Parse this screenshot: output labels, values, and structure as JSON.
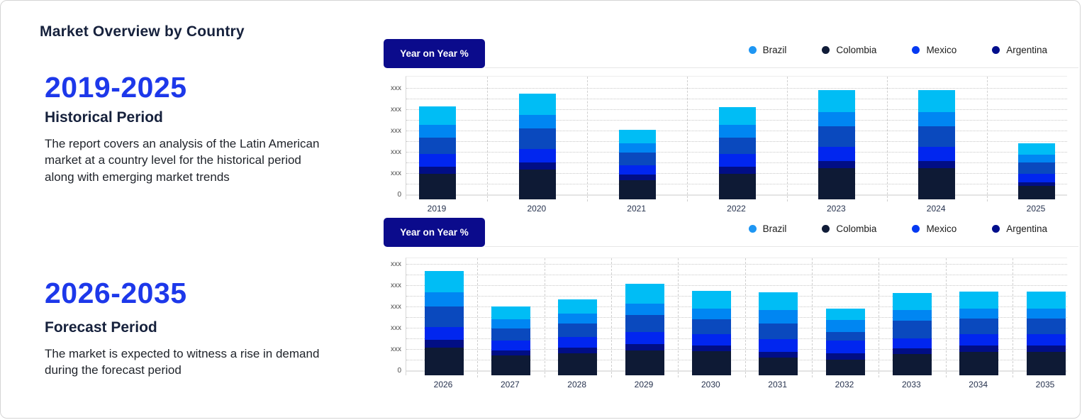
{
  "page_title": "Market Overview by Country",
  "left_panel": {
    "sections": [
      {
        "year_range": "2019-2025",
        "period_name": "Historical Period",
        "description": "The report covers an analysis of the Latin American market at a country level for the historical period along with emerging market trends"
      },
      {
        "year_range": "2026-2035",
        "period_name": "Forecast Period",
        "description": "The market is expected to witness a rise in demand during the forecast period"
      }
    ]
  },
  "colors": {
    "accent_blue": "#1d38ea",
    "heading_navy": "#16213c",
    "button_navy": "#0b0b8c",
    "stack_palette_bottom_to_top": [
      "#0e1a35",
      "#010e85",
      "#0126ef",
      "#0a49be",
      "#0086f2",
      "#00bdf5"
    ]
  },
  "charts": [
    {
      "button_label": "Year on Year %",
      "legend": [
        {
          "label": "Brazil",
          "color": "#1e96f3"
        },
        {
          "label": "Colombia",
          "color": "#101c38"
        },
        {
          "label": "Mexico",
          "color": "#0439f2"
        },
        {
          "label": "Argentina",
          "color": "#000e8c"
        }
      ],
      "chart_data": {
        "type": "bar",
        "stacked": true,
        "title": "Year on Year %",
        "categories": [
          "2019",
          "2020",
          "2021",
          "2022",
          "2023",
          "2024",
          "2025"
        ],
        "y_tick_labels_bottom_to_top": [
          "0",
          "xxx",
          "xxx",
          "xxx",
          "xxx",
          "xxx"
        ],
        "ylim": [
          0,
          174
        ],
        "y_units": "unlabeled (placeholder 'xxx' ticks)",
        "grid": {
          "horizontal": "dotted",
          "vertical": "dashed category separators"
        },
        "legend_position": "top-right",
        "series": [
          {
            "name": "Colombia",
            "color": "#0e1a35",
            "values": [
              36,
              42,
              27,
              36,
              44,
              44,
              19
            ]
          },
          {
            "name": "Argentina",
            "color": "#010e85",
            "values": [
              10,
              10,
              8,
              10,
              10,
              10,
              5
            ]
          },
          {
            "name": "Mexico",
            "color": "#0126ef",
            "values": [
              18,
              19,
              13,
              18,
              20,
              20,
              12
            ]
          },
          {
            "name": "deep-blue-series",
            "color": "#0a49be",
            "values": [
              23,
              29,
              18,
              23,
              29,
              29,
              16
            ]
          },
          {
            "name": "Brazil",
            "color": "#0086f2",
            "values": [
              18,
              19,
              13,
              18,
              20,
              20,
              11
            ]
          },
          {
            "name": "sky-blue-series",
            "color": "#00bdf5",
            "values": [
              26,
              30,
              19,
              25,
              31,
              31,
              16
            ]
          }
        ]
      }
    },
    {
      "button_label": "Year on Year %",
      "legend": [
        {
          "label": "Brazil",
          "color": "#1e96f3"
        },
        {
          "label": "Colombia",
          "color": "#101c38"
        },
        {
          "label": "Mexico",
          "color": "#0439f2"
        },
        {
          "label": "Argentina",
          "color": "#000e8c"
        }
      ],
      "chart_data": {
        "type": "bar",
        "stacked": true,
        "title": "Year on Year %",
        "categories": [
          "2026",
          "2027",
          "2028",
          "2029",
          "2030",
          "2031",
          "2032",
          "2033",
          "2034",
          "2035"
        ],
        "y_tick_labels_bottom_to_top": [
          "0",
          "xxx",
          "xxx",
          "xxx",
          "xxx",
          "xxx"
        ],
        "ylim": [
          0,
          166
        ],
        "y_units": "unlabeled (placeholder 'xxx' ticks)",
        "grid": {
          "horizontal": "dotted",
          "vertical": "dashed category separators"
        },
        "legend_position": "top-right",
        "series": [
          {
            "name": "Colombia",
            "color": "#0e1a35",
            "values": [
              39,
              28,
              31,
              35,
              34,
              25,
              22,
              30,
              33,
              33
            ]
          },
          {
            "name": "Argentina",
            "color": "#010e85",
            "values": [
              11,
              7,
              8,
              9,
              8,
              8,
              9,
              8,
              9,
              9
            ]
          },
          {
            "name": "Mexico",
            "color": "#0126ef",
            "values": [
              18,
              14,
              15,
              17,
              16,
              18,
              18,
              14,
              16,
              16
            ]
          },
          {
            "name": "deep-blue-series",
            "color": "#0a49be",
            "values": [
              29,
              17,
              19,
              24,
              21,
              22,
              12,
              25,
              22,
              22
            ]
          },
          {
            "name": "Brazil",
            "color": "#0086f2",
            "values": [
              20,
              13,
              14,
              16,
              15,
              19,
              17,
              15,
              14,
              14
            ]
          },
          {
            "name": "sky-blue-series",
            "color": "#00bdf5",
            "values": [
              30,
              18,
              20,
              28,
              25,
              25,
              16,
              24,
              24,
              24
            ]
          }
        ]
      }
    }
  ]
}
